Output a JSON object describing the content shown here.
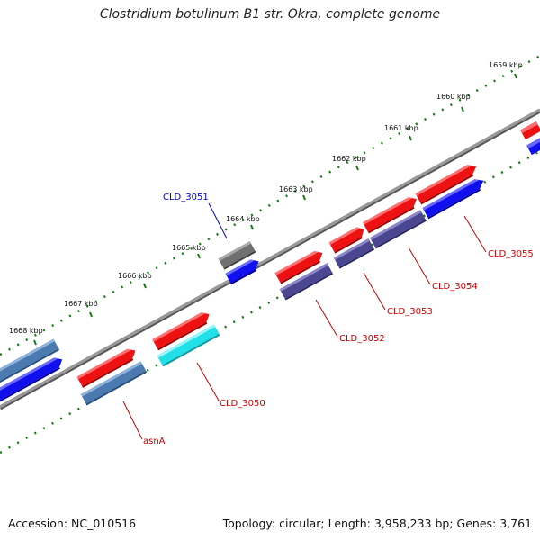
{
  "title": "Clostridium botulinum B1 str. Okra, complete genome",
  "footer": {
    "accession": "Accession: NC_010516",
    "summary": "Topology: circular; Length: 3,958,233 bp; Genes: 3,761"
  },
  "scale_ticks": [
    {
      "label": "1659 kbp"
    },
    {
      "label": "1660 kbp"
    },
    {
      "label": "1661 kbp"
    },
    {
      "label": "1662 kbp"
    },
    {
      "label": "1663 kbp"
    },
    {
      "label": "1664 kbp"
    },
    {
      "label": "1665 kbp"
    },
    {
      "label": "1666 kbp"
    },
    {
      "label": "1667 kbp"
    },
    {
      "label": "1668 kbp"
    }
  ],
  "gene_labels": [
    {
      "name": "CLD_3051",
      "color": "#0000cc"
    },
    {
      "name": "CLD_3055",
      "color": "#cc0000"
    },
    {
      "name": "CLD_3054",
      "color": "#cc0000"
    },
    {
      "name": "CLD_3053",
      "color": "#cc0000"
    },
    {
      "name": "CLD_3052",
      "color": "#cc0000"
    },
    {
      "name": "CLD_3050",
      "color": "#cc0000"
    },
    {
      "name": "asnA",
      "color": "#cc0000"
    }
  ],
  "colors": {
    "backbone": "#888888",
    "tick_dots": "#1a7a1a",
    "feature_red": "#ee1111",
    "feature_blue": "#1010ee",
    "feature_steel": "#4a7ab0",
    "feature_slate": "#4a4690",
    "feature_cyan": "#22e0e8",
    "feature_gray": "#707070"
  }
}
